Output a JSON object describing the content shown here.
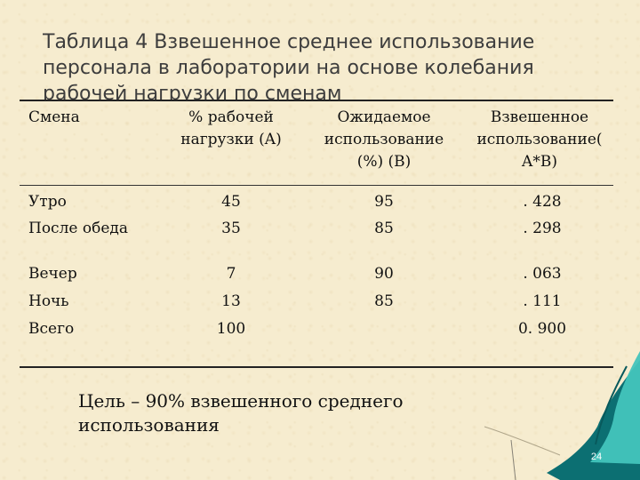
{
  "slide": {
    "title": "Таблица 4 Взвешенное среднее использование персонала в лаборатории на основе колебания рабочей нагрузки по сменам",
    "goal": "Цель – 90% взвешенного среднего использования",
    "page_number": "24"
  },
  "table": {
    "headers": [
      "Смена",
      "% рабочей нагрузки (A)",
      "Ожидаемое использование (%) (B)",
      "Взвешенное использование( A*B)"
    ],
    "rows": [
      {
        "shift": "Утро",
        "load": "45",
        "expected": "95",
        "weighted": ". 428"
      },
      {
        "shift": "После обеда",
        "load": "35",
        "expected": "85",
        "weighted": ". 298"
      },
      {
        "shift": "Вечер",
        "load": "7",
        "expected": "90",
        "weighted": ". 063"
      },
      {
        "shift": "Ночь",
        "load": "13",
        "expected": "85",
        "weighted": ". 111"
      },
      {
        "shift": "Всего",
        "load": "100",
        "expected": "",
        "weighted": "0. 900"
      }
    ]
  },
  "colors": {
    "background": "#f6eccf",
    "leaf_light": "#43c4bc",
    "leaf_dark": "#0c6f72"
  }
}
